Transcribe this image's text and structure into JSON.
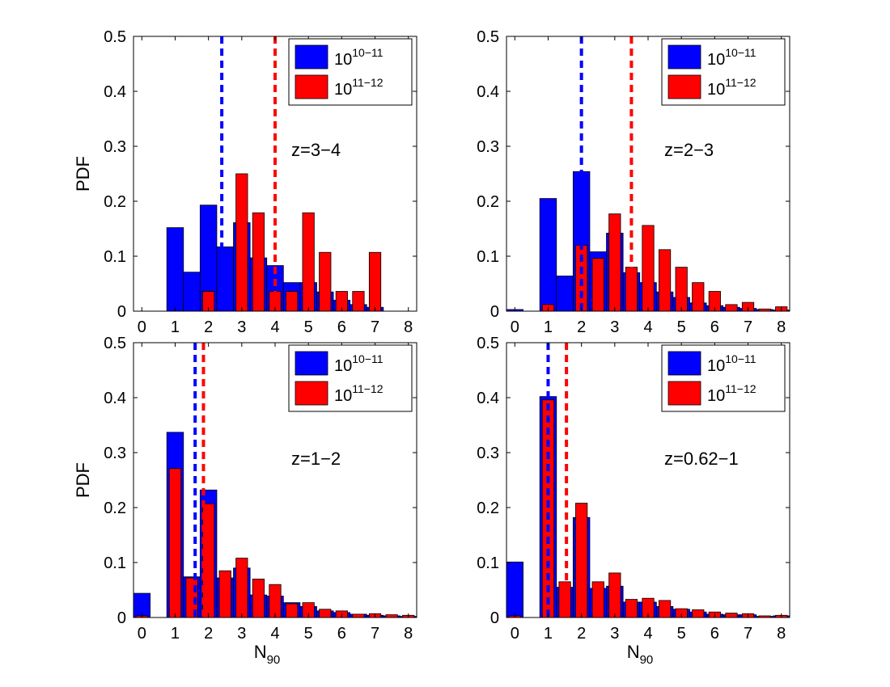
{
  "colors": {
    "blue": "#0000ff",
    "red": "#ff0000",
    "axis": "#000000",
    "background": "#ffffff"
  },
  "chart_data": [
    {
      "type": "bar",
      "panel_label": "z=3−4",
      "ylabel": "PDF",
      "xlabel": "",
      "xlim": [
        -0.25,
        8.25
      ],
      "ylim": [
        0,
        0.5
      ],
      "xticks": [
        0,
        1,
        2,
        3,
        4,
        5,
        6,
        7,
        8
      ],
      "yticks": [
        0,
        0.1,
        0.2,
        0.3,
        0.4,
        0.5
      ],
      "legend_position": "top-right",
      "legend": [
        {
          "base": "10",
          "exp": "10−11",
          "color": "#0000ff"
        },
        {
          "base": "10",
          "exp": "11−12",
          "color": "#ff0000"
        }
      ],
      "series": [
        {
          "color": "#0000ff",
          "bar_width": 0.5,
          "x": [
            0,
            0.5,
            1,
            1.5,
            2,
            2.5,
            3,
            3.5,
            4,
            4.5,
            5,
            5.5,
            6,
            6.5,
            7,
            7.5,
            8
          ],
          "values": [
            0,
            0,
            0.152,
            0.071,
            0.193,
            0.117,
            0.161,
            0.097,
            0.083,
            0.052,
            0.052,
            0.035,
            0.02,
            0.012,
            0.007,
            0,
            0
          ]
        },
        {
          "color": "#ff0000",
          "bar_width": 0.35,
          "x": [
            2,
            2.5,
            3,
            3.5,
            4,
            4.5,
            5,
            5.5,
            6,
            6.5,
            7
          ],
          "values": [
            0.036,
            0,
            0.25,
            0.179,
            0.036,
            0.036,
            0.179,
            0.107,
            0.036,
            0.036,
            0.107
          ]
        }
      ],
      "vlines": [
        {
          "x": 2.4,
          "color": "#0000ff"
        },
        {
          "x": 4.0,
          "color": "#ff0000"
        }
      ]
    },
    {
      "type": "bar",
      "panel_label": "z=2−3",
      "ylabel": "",
      "xlabel": "",
      "xlim": [
        -0.25,
        8.25
      ],
      "ylim": [
        0,
        0.5
      ],
      "xticks": [
        0,
        1,
        2,
        3,
        4,
        5,
        6,
        7,
        8
      ],
      "yticks": [
        0,
        0.1,
        0.2,
        0.3,
        0.4,
        0.5
      ],
      "legend_position": "top-right",
      "legend": [
        {
          "base": "10",
          "exp": "10−11",
          "color": "#0000ff"
        },
        {
          "base": "10",
          "exp": "11−12",
          "color": "#ff0000"
        }
      ],
      "series": [
        {
          "color": "#0000ff",
          "bar_width": 0.5,
          "x": [
            0,
            0.5,
            1,
            1.5,
            2,
            2.5,
            3,
            3.5,
            4,
            4.5,
            5,
            5.5,
            6,
            6.5,
            7,
            7.5,
            8
          ],
          "values": [
            0.003,
            0,
            0.205,
            0.064,
            0.254,
            0.108,
            0.142,
            0.07,
            0.052,
            0.035,
            0.025,
            0.015,
            0.01,
            0.007,
            0.005,
            0.003,
            0.002
          ]
        },
        {
          "color": "#ff0000",
          "bar_width": 0.35,
          "x": [
            1,
            1.5,
            2,
            2.5,
            3,
            3.5,
            4,
            4.5,
            5,
            5.5,
            6,
            6.5,
            7,
            7.5,
            8
          ],
          "values": [
            0.012,
            0,
            0.12,
            0.096,
            0.177,
            0.08,
            0.156,
            0.112,
            0.08,
            0.052,
            0.036,
            0.012,
            0.016,
            0.004,
            0.008
          ]
        }
      ],
      "vlines": [
        {
          "x": 2.0,
          "color": "#0000ff"
        },
        {
          "x": 3.5,
          "color": "#ff0000"
        }
      ]
    },
    {
      "type": "bar",
      "panel_label": "z=1−2",
      "ylabel": "PDF",
      "xlabel": "N",
      "xlabel_sub": "90",
      "xlim": [
        -0.25,
        8.25
      ],
      "ylim": [
        0,
        0.5
      ],
      "xticks": [
        0,
        1,
        2,
        3,
        4,
        5,
        6,
        7,
        8
      ],
      "yticks": [
        0,
        0.1,
        0.2,
        0.3,
        0.4,
        0.5
      ],
      "legend_position": "top-right",
      "legend": [
        {
          "base": "10",
          "exp": "10−11",
          "color": "#0000ff"
        },
        {
          "base": "10",
          "exp": "11−12",
          "color": "#ff0000"
        }
      ],
      "series": [
        {
          "color": "#0000ff",
          "bar_width": 0.5,
          "x": [
            0,
            0.5,
            1,
            1.5,
            2,
            2.5,
            3,
            3.5,
            4,
            4.5,
            5,
            5.5,
            6,
            6.5,
            7,
            7.5,
            8
          ],
          "values": [
            0.044,
            0,
            0.337,
            0.074,
            0.232,
            0.072,
            0.09,
            0.041,
            0.039,
            0.027,
            0.02,
            0.012,
            0.009,
            0.006,
            0.004,
            0.003,
            0.002
          ]
        },
        {
          "color": "#ff0000",
          "bar_width": 0.35,
          "x": [
            0,
            1,
            1.5,
            2,
            2.5,
            3,
            3.5,
            4,
            4.5,
            5,
            5.5,
            6,
            6.5,
            7,
            7.5,
            8
          ],
          "values": [
            0.003,
            0.271,
            0.072,
            0.207,
            0.085,
            0.108,
            0.07,
            0.06,
            0.025,
            0.027,
            0.015,
            0.012,
            0.006,
            0.007,
            0.005,
            0.004
          ]
        }
      ],
      "vlines": [
        {
          "x": 1.6,
          "color": "#0000ff"
        },
        {
          "x": 1.85,
          "color": "#ff0000"
        }
      ]
    },
    {
      "type": "bar",
      "panel_label": "z=0.62−1",
      "ylabel": "",
      "xlabel": "N",
      "xlabel_sub": "90",
      "xlim": [
        -0.25,
        8.25
      ],
      "ylim": [
        0,
        0.5
      ],
      "xticks": [
        0,
        1,
        2,
        3,
        4,
        5,
        6,
        7,
        8
      ],
      "yticks": [
        0,
        0.1,
        0.2,
        0.3,
        0.4,
        0.5
      ],
      "legend_position": "top-right",
      "legend": [
        {
          "base": "10",
          "exp": "10−11",
          "color": "#0000ff"
        },
        {
          "base": "10",
          "exp": "11−12",
          "color": "#ff0000"
        }
      ],
      "series": [
        {
          "color": "#0000ff",
          "bar_width": 0.5,
          "x": [
            0,
            0.5,
            1,
            1.5,
            2,
            2.5,
            3,
            3.5,
            4,
            4.5,
            5,
            5.5,
            6,
            6.5,
            7,
            7.5,
            8
          ],
          "values": [
            0.101,
            0,
            0.402,
            0.055,
            0.182,
            0.053,
            0.057,
            0.028,
            0.028,
            0.02,
            0.015,
            0.01,
            0.006,
            0.005,
            0.005,
            0.002,
            0.003
          ]
        },
        {
          "color": "#ff0000",
          "bar_width": 0.35,
          "x": [
            0,
            1,
            1.5,
            2,
            2.5,
            3,
            3.5,
            4,
            4.5,
            5,
            5.5,
            6,
            6.5,
            7,
            7.5,
            8
          ],
          "values": [
            0.003,
            0.396,
            0.065,
            0.208,
            0.065,
            0.081,
            0.033,
            0.035,
            0.031,
            0.016,
            0.014,
            0.01,
            0.008,
            0.007,
            0.003,
            0.004
          ]
        }
      ],
      "vlines": [
        {
          "x": 1.0,
          "color": "#0000ff"
        },
        {
          "x": 1.55,
          "color": "#ff0000"
        }
      ]
    }
  ]
}
